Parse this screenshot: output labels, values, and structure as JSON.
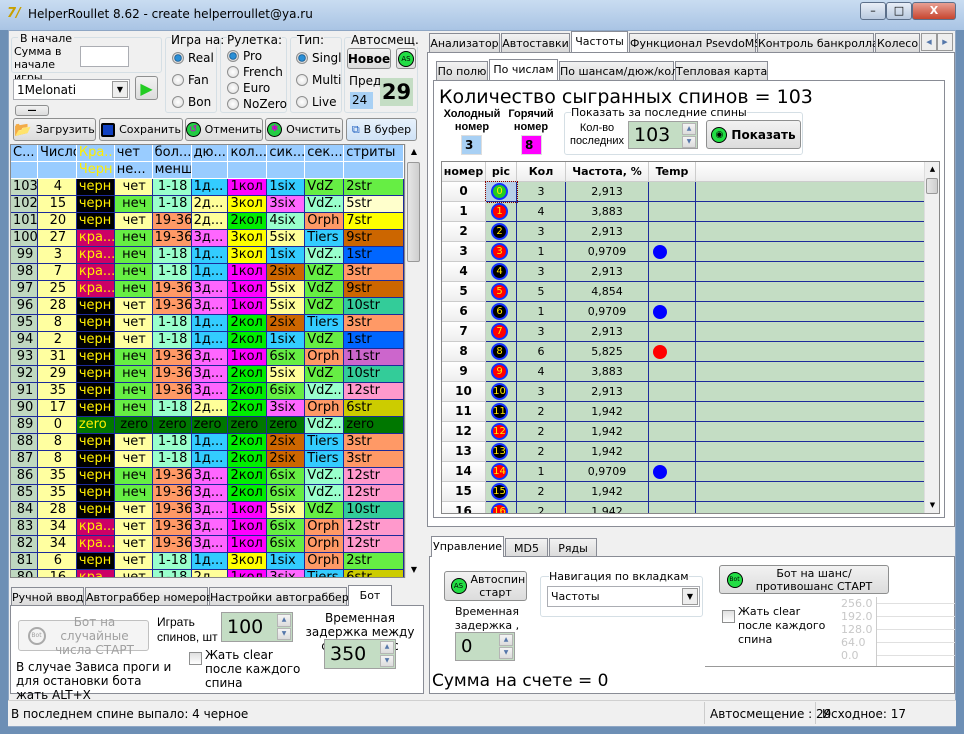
{
  "window": {
    "title": "HelperRoullet 8.62 - create helperroullet@ya.ru",
    "min": "–",
    "max": "□",
    "close": "X"
  },
  "top_left": {
    "start_group": "В начале",
    "sum_label": "Сумма в начале игры",
    "sum_value": "",
    "profile": "1Melonati",
    "minus_label": "—",
    "game_group": "Игра на:",
    "game_options": [
      {
        "label": "Real",
        "checked": true
      },
      {
        "label": "Fan",
        "checked": false
      },
      {
        "label": "Bon",
        "checked": false
      }
    ],
    "roulette_group": "Рулетка:",
    "roulette_options": [
      {
        "label": "Pro",
        "checked": true
      },
      {
        "label": "French",
        "checked": false
      },
      {
        "label": "Euro",
        "checked": false
      },
      {
        "label": "NoZero",
        "checked": false
      }
    ],
    "type_group": "Тип:",
    "type_options": [
      {
        "label": "Singl",
        "checked": true
      },
      {
        "label": "Multi",
        "checked": false
      },
      {
        "label": "Live",
        "checked": false
      }
    ],
    "auto_group": "Автосмещ.",
    "new_button": "Новое",
    "as_icon_text": "AS",
    "prev_label": "Пред.",
    "prev_value": "24",
    "current_value": "29"
  },
  "toolbar": {
    "load": "Загрузить",
    "save": "Сохранить",
    "undo": "Отменить",
    "clear": "Очистить",
    "copy": "В буфер"
  },
  "history": {
    "headers": [
      "С...",
      "Число",
      "Кра...",
      "чет",
      "бол...",
      "дю...",
      "кол...",
      "сик...",
      "сек...",
      "стриты"
    ],
    "headers2": [
      "",
      "",
      "Черн",
      "не...",
      "менш",
      "",
      "",
      "",
      "",
      ""
    ],
    "rows": [
      [
        "103",
        "4",
        "черн",
        "чет",
        "1-18",
        "1д...",
        "1кол",
        "1six",
        "VdZ",
        "2str"
      ],
      [
        "102",
        "15",
        "черн",
        "неч",
        "1-18",
        "2д...",
        "3кол",
        "3six",
        "VdZ...",
        "5str"
      ],
      [
        "101",
        "20",
        "черн",
        "чет",
        "19-36",
        "2д...",
        "2кол",
        "4six",
        "Orph",
        "7str"
      ],
      [
        "100",
        "27",
        "кра...",
        "неч",
        "19-36",
        "3д...",
        "3кол",
        "5six",
        "Tiers",
        "9str"
      ],
      [
        "99",
        "3",
        "кра...",
        "неч",
        "1-18",
        "1д...",
        "3кол",
        "1six",
        "VdZ...",
        "1str"
      ],
      [
        "98",
        "7",
        "кра...",
        "неч",
        "1-18",
        "1д...",
        "1кол",
        "2six",
        "VdZ",
        "3str"
      ],
      [
        "97",
        "25",
        "кра...",
        "неч",
        "19-36",
        "3д...",
        "1кол",
        "5six",
        "VdZ",
        "9str"
      ],
      [
        "96",
        "28",
        "черн",
        "чет",
        "19-36",
        "3д...",
        "1кол",
        "5six",
        "VdZ",
        "10str"
      ],
      [
        "95",
        "8",
        "черн",
        "чет",
        "1-18",
        "1д...",
        "2кол",
        "2six",
        "Tiers",
        "3str"
      ],
      [
        "94",
        "2",
        "черн",
        "чет",
        "1-18",
        "1д...",
        "2кол",
        "1six",
        "VdZ",
        "1str"
      ],
      [
        "93",
        "31",
        "черн",
        "неч",
        "19-36",
        "3д...",
        "1кол",
        "6six",
        "Orph",
        "11str"
      ],
      [
        "92",
        "29",
        "черн",
        "неч",
        "19-36",
        "3д...",
        "2кол",
        "5six",
        "VdZ",
        "10str"
      ],
      [
        "91",
        "35",
        "черн",
        "неч",
        "19-36",
        "3д...",
        "2кол",
        "6six",
        "VdZ...",
        "12str"
      ],
      [
        "90",
        "17",
        "черн",
        "неч",
        "1-18",
        "2д...",
        "2кол",
        "3six",
        "Orph",
        "6str"
      ],
      [
        "89",
        "0",
        "zero",
        "zero",
        "zero",
        "zero",
        "zero",
        "zero",
        "VdZ...",
        "zero"
      ],
      [
        "88",
        "8",
        "черн",
        "чет",
        "1-18",
        "1д...",
        "2кол",
        "2six",
        "Tiers",
        "3str"
      ],
      [
        "87",
        "8",
        "черн",
        "чет",
        "1-18",
        "1д...",
        "2кол",
        "2six",
        "Tiers",
        "3str"
      ],
      [
        "86",
        "35",
        "черн",
        "неч",
        "19-36",
        "3д...",
        "2кол",
        "6six",
        "VdZ...",
        "12str"
      ],
      [
        "85",
        "35",
        "черн",
        "неч",
        "19-36",
        "3д...",
        "2кол",
        "6six",
        "VdZ...",
        "12str"
      ],
      [
        "84",
        "28",
        "черн",
        "чет",
        "19-36",
        "3д...",
        "1кол",
        "5six",
        "VdZ",
        "10str"
      ],
      [
        "83",
        "34",
        "кра...",
        "чет",
        "19-36",
        "3д...",
        "1кол",
        "6six",
        "Orph",
        "12str"
      ],
      [
        "82",
        "34",
        "кра...",
        "чет",
        "19-36",
        "3д...",
        "1кол",
        "6six",
        "Orph",
        "12str"
      ],
      [
        "81",
        "6",
        "черн",
        "чет",
        "1-18",
        "1д...",
        "3кол",
        "1six",
        "Orph",
        "2str"
      ],
      [
        "80",
        "16",
        "кра...",
        "чет",
        "1-18",
        "2д...",
        "1кол",
        "3six",
        "Tiers",
        "6str"
      ]
    ],
    "colors": {
      "черн": "#000000",
      "кра...": "#cc0066",
      "zero": "#007700",
      "чет": "#ffffa0",
      "неч": "#66ee44",
      "1-18": "#99ffcc",
      "19-36": "#ff9966",
      "1д...": "#33ccff",
      "2д...": "#ffff99",
      "3д...": "#ff66ff",
      "1кол": "#ff00ff",
      "2кол": "#00ee00",
      "3кол": "#ffff00",
      "1six": "#33ccff",
      "2six": "#cc6600",
      "3six": "#ff66ff",
      "4six": "#99ffcc",
      "5six": "#ffff99",
      "6six": "#66ee44",
      "VdZ": "#66ee44",
      "VdZ...": "#99ffcc",
      "Orph": "#ff9966",
      "Tiers": "#33ccff",
      "1str": "#0066ff",
      "2str": "#66ee44",
      "3str": "#ff9966",
      "5str": "#ffffcc",
      "6str": "#cccc00",
      "7str": "#ffff00",
      "9str": "#cc6600",
      "10str": "#33cc99",
      "11str": "#cc66cc",
      "12str": "#ff99cc"
    }
  },
  "bottom_left": {
    "tabs": [
      {
        "label": "Ручной ввод",
        "active": false
      },
      {
        "label": "Автограббер номеров",
        "active": false
      },
      {
        "label": "Настройки автограббера",
        "active": false
      },
      {
        "label": "Бот",
        "active": true
      }
    ],
    "bot_button": "Бот на случайные числа СТАРТ",
    "bot_icon_text": "Bot",
    "spins_label": "Играть спинов, шт",
    "spins_value": "100",
    "clear_label": "Жать clear после каждого спина",
    "clear_checked": false,
    "delay_label": "Временная задержка между спинами, мс",
    "delay_value": "350",
    "hint": "В случае Зависа проги и для остановки бота жать ALT+X"
  },
  "right": {
    "tabs": [
      {
        "label": "Анализатор",
        "active": false
      },
      {
        "label": "Автоставки",
        "active": false
      },
      {
        "label": "Частоты",
        "active": true
      },
      {
        "label": "Функционал PsevdoMS",
        "active": false
      },
      {
        "label": "Контроль банкролла",
        "active": false
      },
      {
        "label": "Колесо",
        "active": false
      }
    ],
    "subtabs": [
      {
        "label": "По полю",
        "active": false
      },
      {
        "label": "По числам",
        "active": true
      },
      {
        "label": "По шансам/дюж/кол",
        "active": false
      },
      {
        "label": "Тепловая карта",
        "active": false
      }
    ],
    "heading": "Количество сыгранных спинов = 103",
    "cold_label": "Холодный номер",
    "cold_value": "3",
    "hot_label": "Горячий номер",
    "hot_value": "8",
    "last_group": "Показать за последние спины",
    "count_label": "Кол-во последних",
    "count_value": "103",
    "show_button": "Показать",
    "freq": {
      "headers": [
        "номер",
        "pic",
        "Кол",
        "Частота, %",
        "Temp"
      ],
      "rows": [
        {
          "n": "0",
          "c": "3",
          "f": "2,913",
          "temp": "",
          "ball": "green"
        },
        {
          "n": "1",
          "c": "4",
          "f": "3,883",
          "temp": "",
          "ball": "red"
        },
        {
          "n": "2",
          "c": "3",
          "f": "2,913",
          "temp": "",
          "ball": "black"
        },
        {
          "n": "3",
          "c": "1",
          "f": "0,9709",
          "temp": "cold",
          "ball": "red"
        },
        {
          "n": "4",
          "c": "3",
          "f": "2,913",
          "temp": "",
          "ball": "black"
        },
        {
          "n": "5",
          "c": "5",
          "f": "4,854",
          "temp": "",
          "ball": "red"
        },
        {
          "n": "6",
          "c": "1",
          "f": "0,9709",
          "temp": "cold",
          "ball": "black"
        },
        {
          "n": "7",
          "c": "3",
          "f": "2,913",
          "temp": "",
          "ball": "red"
        },
        {
          "n": "8",
          "c": "6",
          "f": "5,825",
          "temp": "hot",
          "ball": "black"
        },
        {
          "n": "9",
          "c": "4",
          "f": "3,883",
          "temp": "",
          "ball": "red"
        },
        {
          "n": "10",
          "c": "3",
          "f": "2,913",
          "temp": "",
          "ball": "black"
        },
        {
          "n": "11",
          "c": "2",
          "f": "1,942",
          "temp": "",
          "ball": "black"
        },
        {
          "n": "12",
          "c": "2",
          "f": "1,942",
          "temp": "",
          "ball": "red"
        },
        {
          "n": "13",
          "c": "2",
          "f": "1,942",
          "temp": "",
          "ball": "black"
        },
        {
          "n": "14",
          "c": "1",
          "f": "0,9709",
          "temp": "cold",
          "ball": "red"
        },
        {
          "n": "15",
          "c": "2",
          "f": "1,942",
          "temp": "",
          "ball": "black"
        },
        {
          "n": "16",
          "c": "2",
          "f": "1,942",
          "temp": "",
          "ball": "red"
        }
      ],
      "colors": {
        "green": "#22cc22",
        "red": "#ff0000",
        "black": "#000000",
        "cold": "#0000ff",
        "hot": "#ff0000"
      }
    }
  },
  "bottom_right": {
    "tabs": [
      {
        "label": "Управление",
        "active": true
      },
      {
        "label": "MD5",
        "active": false
      },
      {
        "label": "Ряды",
        "active": false
      }
    ],
    "autospin_button": "Автоспин старт",
    "as_icon_text": "AS",
    "delay_label": "Временная задержка , мс",
    "delay_value": "0",
    "nav_group": "Навигация по вкладкам",
    "nav_value": "Частоты",
    "bot_button": "Бот на шанс/противошанс СТАРТ",
    "bot_icon_text": "Bot",
    "clear_label": "Жать clear после каждого спина",
    "clear_checked": false,
    "chart_ticks": [
      "256.0",
      "192.0",
      "128.0",
      "64.0",
      "0.0"
    ],
    "balance": "Сумма на счете = 0"
  },
  "status": {
    "last_spin": "В последнем спине выпало: 4 черное",
    "auto_offset": "Автосмещение : 29",
    "original": "Исходное: 17"
  }
}
